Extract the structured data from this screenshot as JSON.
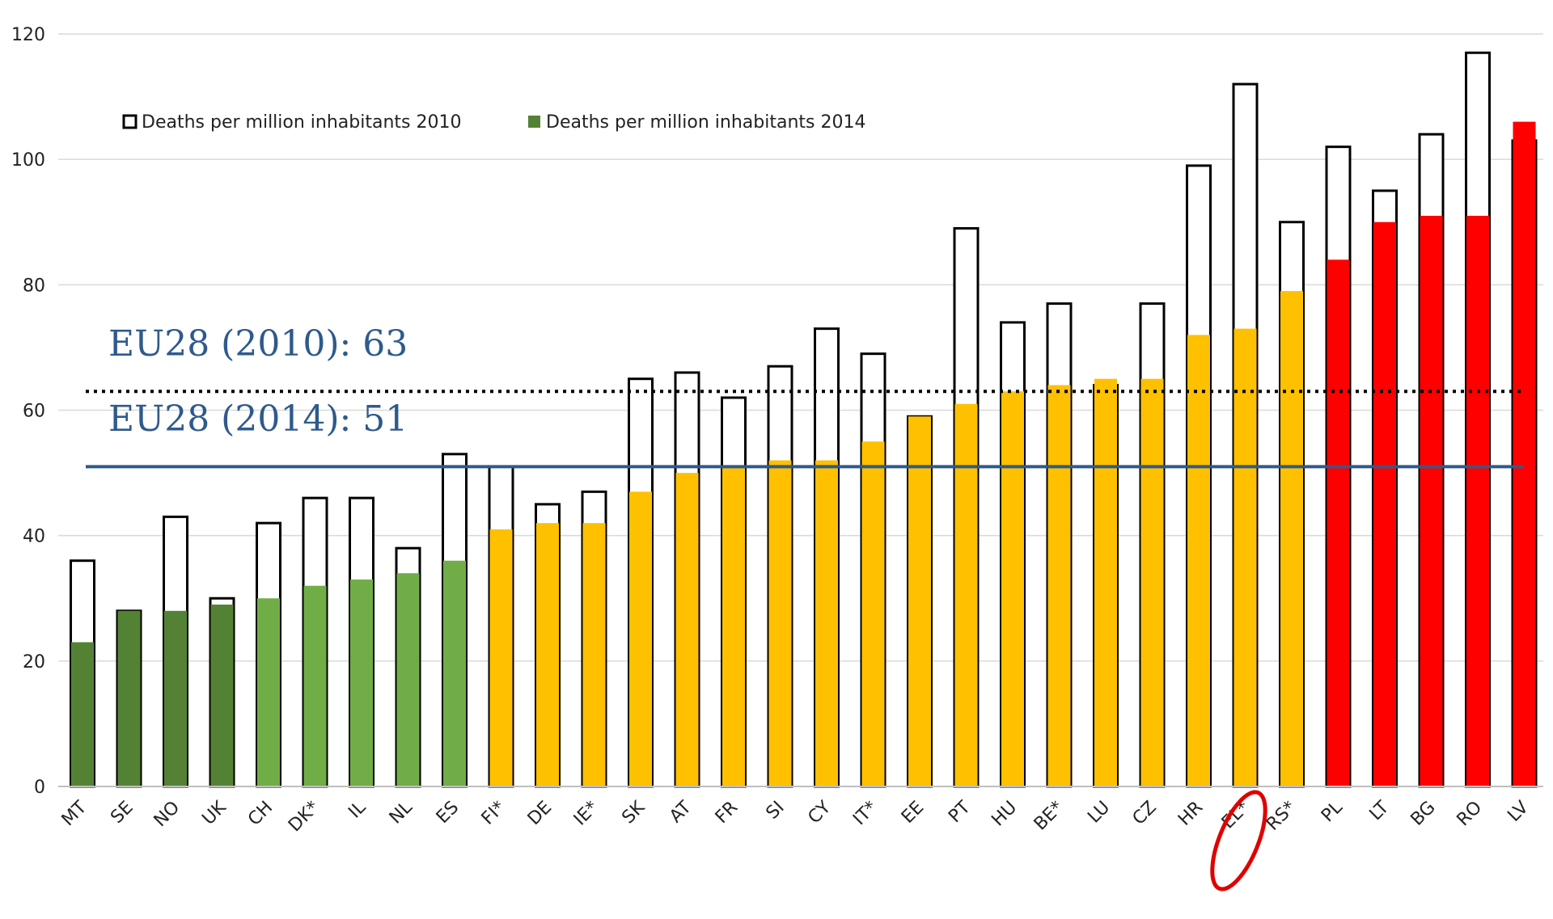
{
  "chart_data": {
    "type": "bar",
    "ylim": [
      0,
      120
    ],
    "yticks": [
      0,
      20,
      40,
      60,
      80,
      100,
      120
    ],
    "grid": true,
    "legend_position": "top-left",
    "categories": [
      "MT",
      "SE",
      "NO",
      "UK",
      "CH",
      "DK*",
      "IL",
      "NL",
      "ES",
      "FI*",
      "DE",
      "IE*",
      "SK",
      "AT",
      "FR",
      "SI",
      "CY",
      "IT*",
      "EE",
      "PT",
      "HU",
      "BE*",
      "LU",
      "CZ",
      "HR",
      "EL*",
      "RS*",
      "PL",
      "LT",
      "BG",
      "RO",
      "LV"
    ],
    "series": [
      {
        "name": "Deaths per million inhabitants 2010",
        "style": "outline",
        "values": [
          36,
          28,
          43,
          30,
          42,
          46,
          46,
          38,
          53,
          51,
          45,
          47,
          65,
          66,
          62,
          67,
          73,
          69,
          59,
          89,
          74,
          77,
          64,
          77,
          99,
          112,
          90,
          102,
          95,
          104,
          117,
          103
        ]
      },
      {
        "name": "Deaths per million inhabitants 2014",
        "style": "filled",
        "values": [
          23,
          28,
          28,
          29,
          30,
          32,
          33,
          34,
          36,
          41,
          42,
          42,
          47,
          50,
          51,
          52,
          52,
          55,
          59,
          61,
          63,
          64,
          65,
          65,
          72,
          73,
          79,
          84,
          90,
          91,
          91,
          106
        ]
      }
    ],
    "bar_colors_2014": [
      "#548235",
      "#548235",
      "#548235",
      "#548235",
      "#70ad47",
      "#70ad47",
      "#70ad47",
      "#70ad47",
      "#70ad47",
      "#ffc000",
      "#ffc000",
      "#ffc000",
      "#ffc000",
      "#ffc000",
      "#ffc000",
      "#ffc000",
      "#ffc000",
      "#ffc000",
      "#ffc000",
      "#ffc000",
      "#ffc000",
      "#ffc000",
      "#ffc000",
      "#ffc000",
      "#ffc000",
      "#ffc000",
      "#ffc000",
      "#ff0000",
      "#ff0000",
      "#ff0000",
      "#ff0000",
      "#ff0000"
    ],
    "legend_swatch_2014": "#548235",
    "reference_lines": [
      {
        "label": "EU28 (2010): 63",
        "value": 63,
        "style": "dotted",
        "color": "#000000"
      },
      {
        "label": "EU28 (2014): 51",
        "value": 51,
        "style": "solid",
        "color": "#2e5a8c"
      }
    ],
    "highlight": {
      "category": "EL*",
      "shape": "ellipse",
      "color": "#e00000"
    }
  }
}
